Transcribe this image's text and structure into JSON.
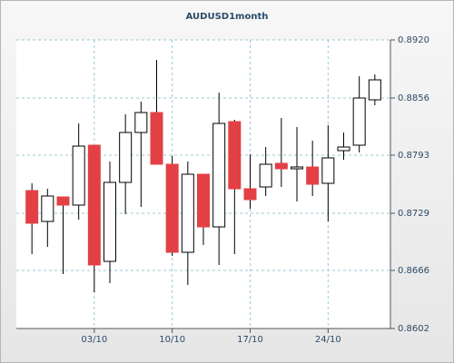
{
  "chart_data": {
    "type": "candlestick",
    "title": "AUDUSD1month",
    "categories": [
      null,
      null,
      null,
      null,
      "03/10",
      null,
      null,
      null,
      null,
      "10/10",
      null,
      null,
      null,
      null,
      "17/10",
      null,
      null,
      null,
      null,
      "24/10",
      null,
      null,
      null
    ],
    "open": [
      0.8754,
      0.872,
      0.8747,
      0.8738,
      0.8804,
      0.8676,
      0.8763,
      0.8818,
      0.884,
      0.8783,
      0.8686,
      0.8772,
      0.8714,
      0.883,
      0.8756,
      0.8758,
      0.8784,
      0.8778,
      0.878,
      0.8762,
      0.8798,
      0.8804,
      0.8854
    ],
    "high": [
      0.8762,
      0.8756,
      0.8747,
      0.8828,
      0.8804,
      0.8786,
      0.8838,
      0.8852,
      0.8898,
      0.8792,
      0.8786,
      0.8772,
      0.8862,
      0.8832,
      0.8794,
      0.8802,
      0.8834,
      0.8824,
      0.8809,
      0.8826,
      0.8818,
      0.888,
      0.8882
    ],
    "low": [
      0.8684,
      0.8692,
      0.8662,
      0.8722,
      0.8642,
      0.8652,
      0.8728,
      0.8736,
      0.8783,
      0.8682,
      0.865,
      0.8694,
      0.8672,
      0.8684,
      0.8734,
      0.8748,
      0.8758,
      0.8742,
      0.8748,
      0.872,
      0.8788,
      0.8796,
      0.8848
    ],
    "close": [
      0.8718,
      0.8748,
      0.8738,
      0.8803,
      0.8672,
      0.8763,
      0.8818,
      0.884,
      0.8783,
      0.8686,
      0.8772,
      0.8714,
      0.8828,
      0.8756,
      0.8744,
      0.8783,
      0.8778,
      0.878,
      0.8761,
      0.879,
      0.8802,
      0.8856,
      0.8876
    ],
    "up_color": "#ffffff",
    "down_color": "#e34045",
    "ylim": [
      0.8602,
      0.892
    ],
    "yticks": [
      {
        "value": 0.8602,
        "label": "0.8602"
      },
      {
        "value": 0.8666,
        "label": "0.8666"
      },
      {
        "value": 0.8729,
        "label": "0.8729"
      },
      {
        "value": 0.8793,
        "label": "0.8793"
      },
      {
        "value": 0.8856,
        "label": "0.8856"
      },
      {
        "value": 0.892,
        "label": "0.8920"
      }
    ],
    "grid": true
  }
}
